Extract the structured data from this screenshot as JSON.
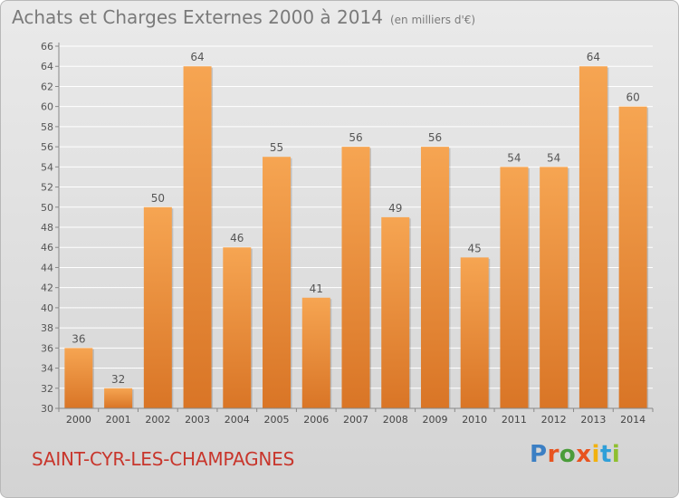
{
  "header": {
    "title": "Achats et Charges Externes 2000 à 2014",
    "unit_note": "(en milliers d'€)"
  },
  "footer": {
    "commune": "SAINT-CYR-LES-CHAMPAGNES",
    "brand": "Proxiti"
  },
  "colors": {
    "bar_light": "#f6a552",
    "bar_dark": "#d97526",
    "commune_text": "#c8362c"
  },
  "chart_data": {
    "type": "bar",
    "categories": [
      "2000",
      "2001",
      "2002",
      "2003",
      "2004",
      "2005",
      "2006",
      "2007",
      "2008",
      "2009",
      "2010",
      "2011",
      "2012",
      "2013",
      "2014"
    ],
    "values": [
      36,
      32,
      50,
      64,
      46,
      55,
      41,
      56,
      49,
      56,
      45,
      54,
      54,
      64,
      60
    ],
    "ylim": [
      30,
      66
    ],
    "yticks": [
      30,
      32,
      34,
      36,
      38,
      40,
      42,
      44,
      46,
      48,
      50,
      52,
      54,
      56,
      58,
      60,
      62,
      64,
      66
    ],
    "grid": true
  }
}
